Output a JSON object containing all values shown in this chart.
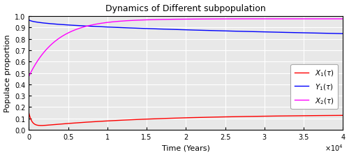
{
  "title": "Dynamics of Different subpopulation",
  "xlabel": "Time (Years)",
  "ylabel": "Populace proportion",
  "xlim": [
    0,
    40000
  ],
  "ylim": [
    0,
    1.0
  ],
  "xticks": [
    0,
    5000,
    10000,
    15000,
    20000,
    25000,
    30000,
    35000,
    40000
  ],
  "yticks": [
    0,
    0.1,
    0.2,
    0.3,
    0.4,
    0.5,
    0.6,
    0.7,
    0.8,
    0.9,
    1.0
  ],
  "legend_labels": [
    "$X_1(\\tau)$",
    "$Y_1(\\tau)$",
    "$X_2(\\tau)$"
  ],
  "line_colors": [
    "#ff0000",
    "#0000ff",
    "#ff00ff"
  ],
  "background_color": "#e8e8e8",
  "grid_color": "#ffffff",
  "fig_bg": "#ffffff"
}
